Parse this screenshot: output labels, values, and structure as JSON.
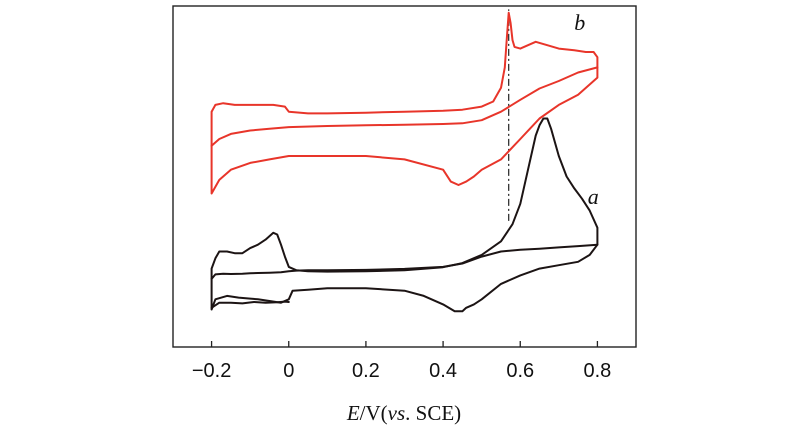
{
  "chart_data": {
    "type": "line",
    "title": "",
    "xlabel": {
      "italic_symbol": "E",
      "rest": "/V(",
      "italic_abbrev": "vs",
      "suffix": ". SCE)"
    },
    "ylabel": "",
    "xlim": [
      -0.3,
      0.9
    ],
    "ylim": [
      0,
      100
    ],
    "x_ticks": [
      -0.2,
      0,
      0.2,
      0.4,
      0.6,
      0.8
    ],
    "x_tick_labels": [
      "−0.2",
      "0",
      "0.2",
      "0.4",
      "0.6",
      "0.8"
    ],
    "y_ticks_visible": false,
    "grid": false,
    "legend": "none",
    "reference_line": {
      "x": 0.57,
      "y_from": 37,
      "y_to": 99,
      "style": "dash-dot",
      "color": "#333333"
    },
    "series": [
      {
        "name": "b",
        "color": "#e8352a",
        "label_at": [
          0.74,
          93
        ],
        "outer": {
          "x": [
            -0.2,
            -0.19,
            -0.17,
            -0.14,
            -0.12,
            -0.08,
            -0.04,
            -0.01,
            0.0,
            0.05,
            0.1,
            0.2,
            0.3,
            0.4,
            0.45,
            0.5,
            0.53,
            0.55,
            0.56,
            0.565,
            0.57,
            0.575,
            0.58,
            0.585,
            0.6,
            0.62,
            0.64,
            0.67,
            0.7,
            0.74,
            0.77,
            0.79,
            0.8,
            0.8,
            0.75,
            0.7,
            0.65,
            0.6,
            0.55,
            0.5,
            0.48,
            0.46,
            0.44,
            0.42,
            0.4,
            0.3,
            0.2,
            0.1,
            0.05,
            0.02,
            0.0,
            -0.05,
            -0.1,
            -0.15,
            -0.18,
            -0.2
          ],
          "y": [
            69,
            71,
            71.5,
            71,
            71,
            71,
            71,
            70.5,
            69,
            68.5,
            68.5,
            68.7,
            69,
            69.3,
            69.6,
            70.5,
            72,
            76,
            82,
            90,
            98,
            95,
            90,
            88,
            87.5,
            88.5,
            89.5,
            88.5,
            87.5,
            87,
            86.5,
            86.5,
            85,
            79,
            74,
            71,
            67,
            61,
            55,
            52,
            50,
            48.5,
            47.5,
            48.5,
            52,
            55,
            56,
            56,
            56,
            56,
            56,
            55,
            54,
            52,
            49,
            45
          ]
        },
        "inner": {
          "x": [
            -0.2,
            -0.18,
            -0.15,
            -0.1,
            -0.05,
            0.0,
            0.1,
            0.2,
            0.3,
            0.4,
            0.45,
            0.5,
            0.55,
            0.6,
            0.65,
            0.7,
            0.75,
            0.8
          ],
          "y": [
            59,
            61,
            62.5,
            63.5,
            64,
            64.5,
            64.8,
            65,
            65.2,
            65.4,
            65.6,
            66.5,
            69,
            72.5,
            75.8,
            78,
            80.5,
            82
          ]
        }
      },
      {
        "name": "a",
        "color": "#1c1414",
        "label_at": [
          0.775,
          42
        ],
        "outer": {
          "x": [
            -0.2,
            -0.2,
            -0.19,
            -0.18,
            -0.16,
            -0.14,
            -0.12,
            -0.1,
            -0.08,
            -0.06,
            -0.04,
            -0.03,
            -0.02,
            -0.01,
            0.0,
            0.02,
            0.05,
            0.1,
            0.2,
            0.3,
            0.4,
            0.45,
            0.5,
            0.55,
            0.58,
            0.6,
            0.62,
            0.64,
            0.65,
            0.66,
            0.67,
            0.68,
            0.7,
            0.72,
            0.74,
            0.76,
            0.78,
            0.8,
            0.8,
            0.78,
            0.75,
            0.7,
            0.65,
            0.6,
            0.55,
            0.5,
            0.48,
            0.46,
            0.45,
            0.43,
            0.4,
            0.35,
            0.3,
            0.2,
            0.1,
            0.05,
            0.01,
            0.0,
            -0.02,
            -0.05,
            -0.08,
            -0.1,
            -0.13,
            -0.16,
            -0.19,
            -0.2
          ],
          "y": [
            15,
            23,
            26,
            28,
            28,
            27.5,
            27.5,
            29,
            30,
            31.5,
            33.5,
            33,
            30,
            26.5,
            23.5,
            22.5,
            22.2,
            22.1,
            22.2,
            22.5,
            23.4,
            24.6,
            27,
            31,
            36,
            42,
            52,
            62,
            65,
            67,
            67,
            64,
            56,
            50,
            46.5,
            43.5,
            40,
            35,
            30,
            27,
            25,
            24,
            23,
            21,
            18.5,
            14,
            12.5,
            11.5,
            10.5,
            10.5,
            12.5,
            15,
            16.5,
            17.2,
            17.2,
            16.8,
            16.5,
            14,
            13,
            13.5,
            14,
            14.2,
            14.5,
            15,
            14,
            11
          ]
        },
        "inner": {
          "x": [
            -0.2,
            -0.19,
            -0.17,
            -0.15,
            -0.12,
            -0.1,
            -0.08,
            -0.05,
            -0.02,
            0.0,
            0.02,
            0.05,
            0.1,
            0.2,
            0.3,
            0.4,
            0.45,
            0.5,
            0.55,
            0.6,
            0.65,
            0.7,
            0.75,
            0.8
          ],
          "y": [
            20,
            21.3,
            21.5,
            21.4,
            21.5,
            21.6,
            21.7,
            21.8,
            21.9,
            22.2,
            22.4,
            22.5,
            22.5,
            22.6,
            22.9,
            23.5,
            24.5,
            26.5,
            28,
            28.5,
            28.8,
            29.2,
            29.6,
            30
          ]
        },
        "extra": {
          "x": [
            -0.2,
            -0.18,
            -0.15,
            -0.12,
            -0.09,
            -0.06,
            -0.03,
            -0.01,
            0.0
          ],
          "y": [
            11.5,
            13,
            13,
            12.8,
            13.2,
            13,
            13.1,
            13.3,
            13.2
          ]
        }
      }
    ]
  }
}
